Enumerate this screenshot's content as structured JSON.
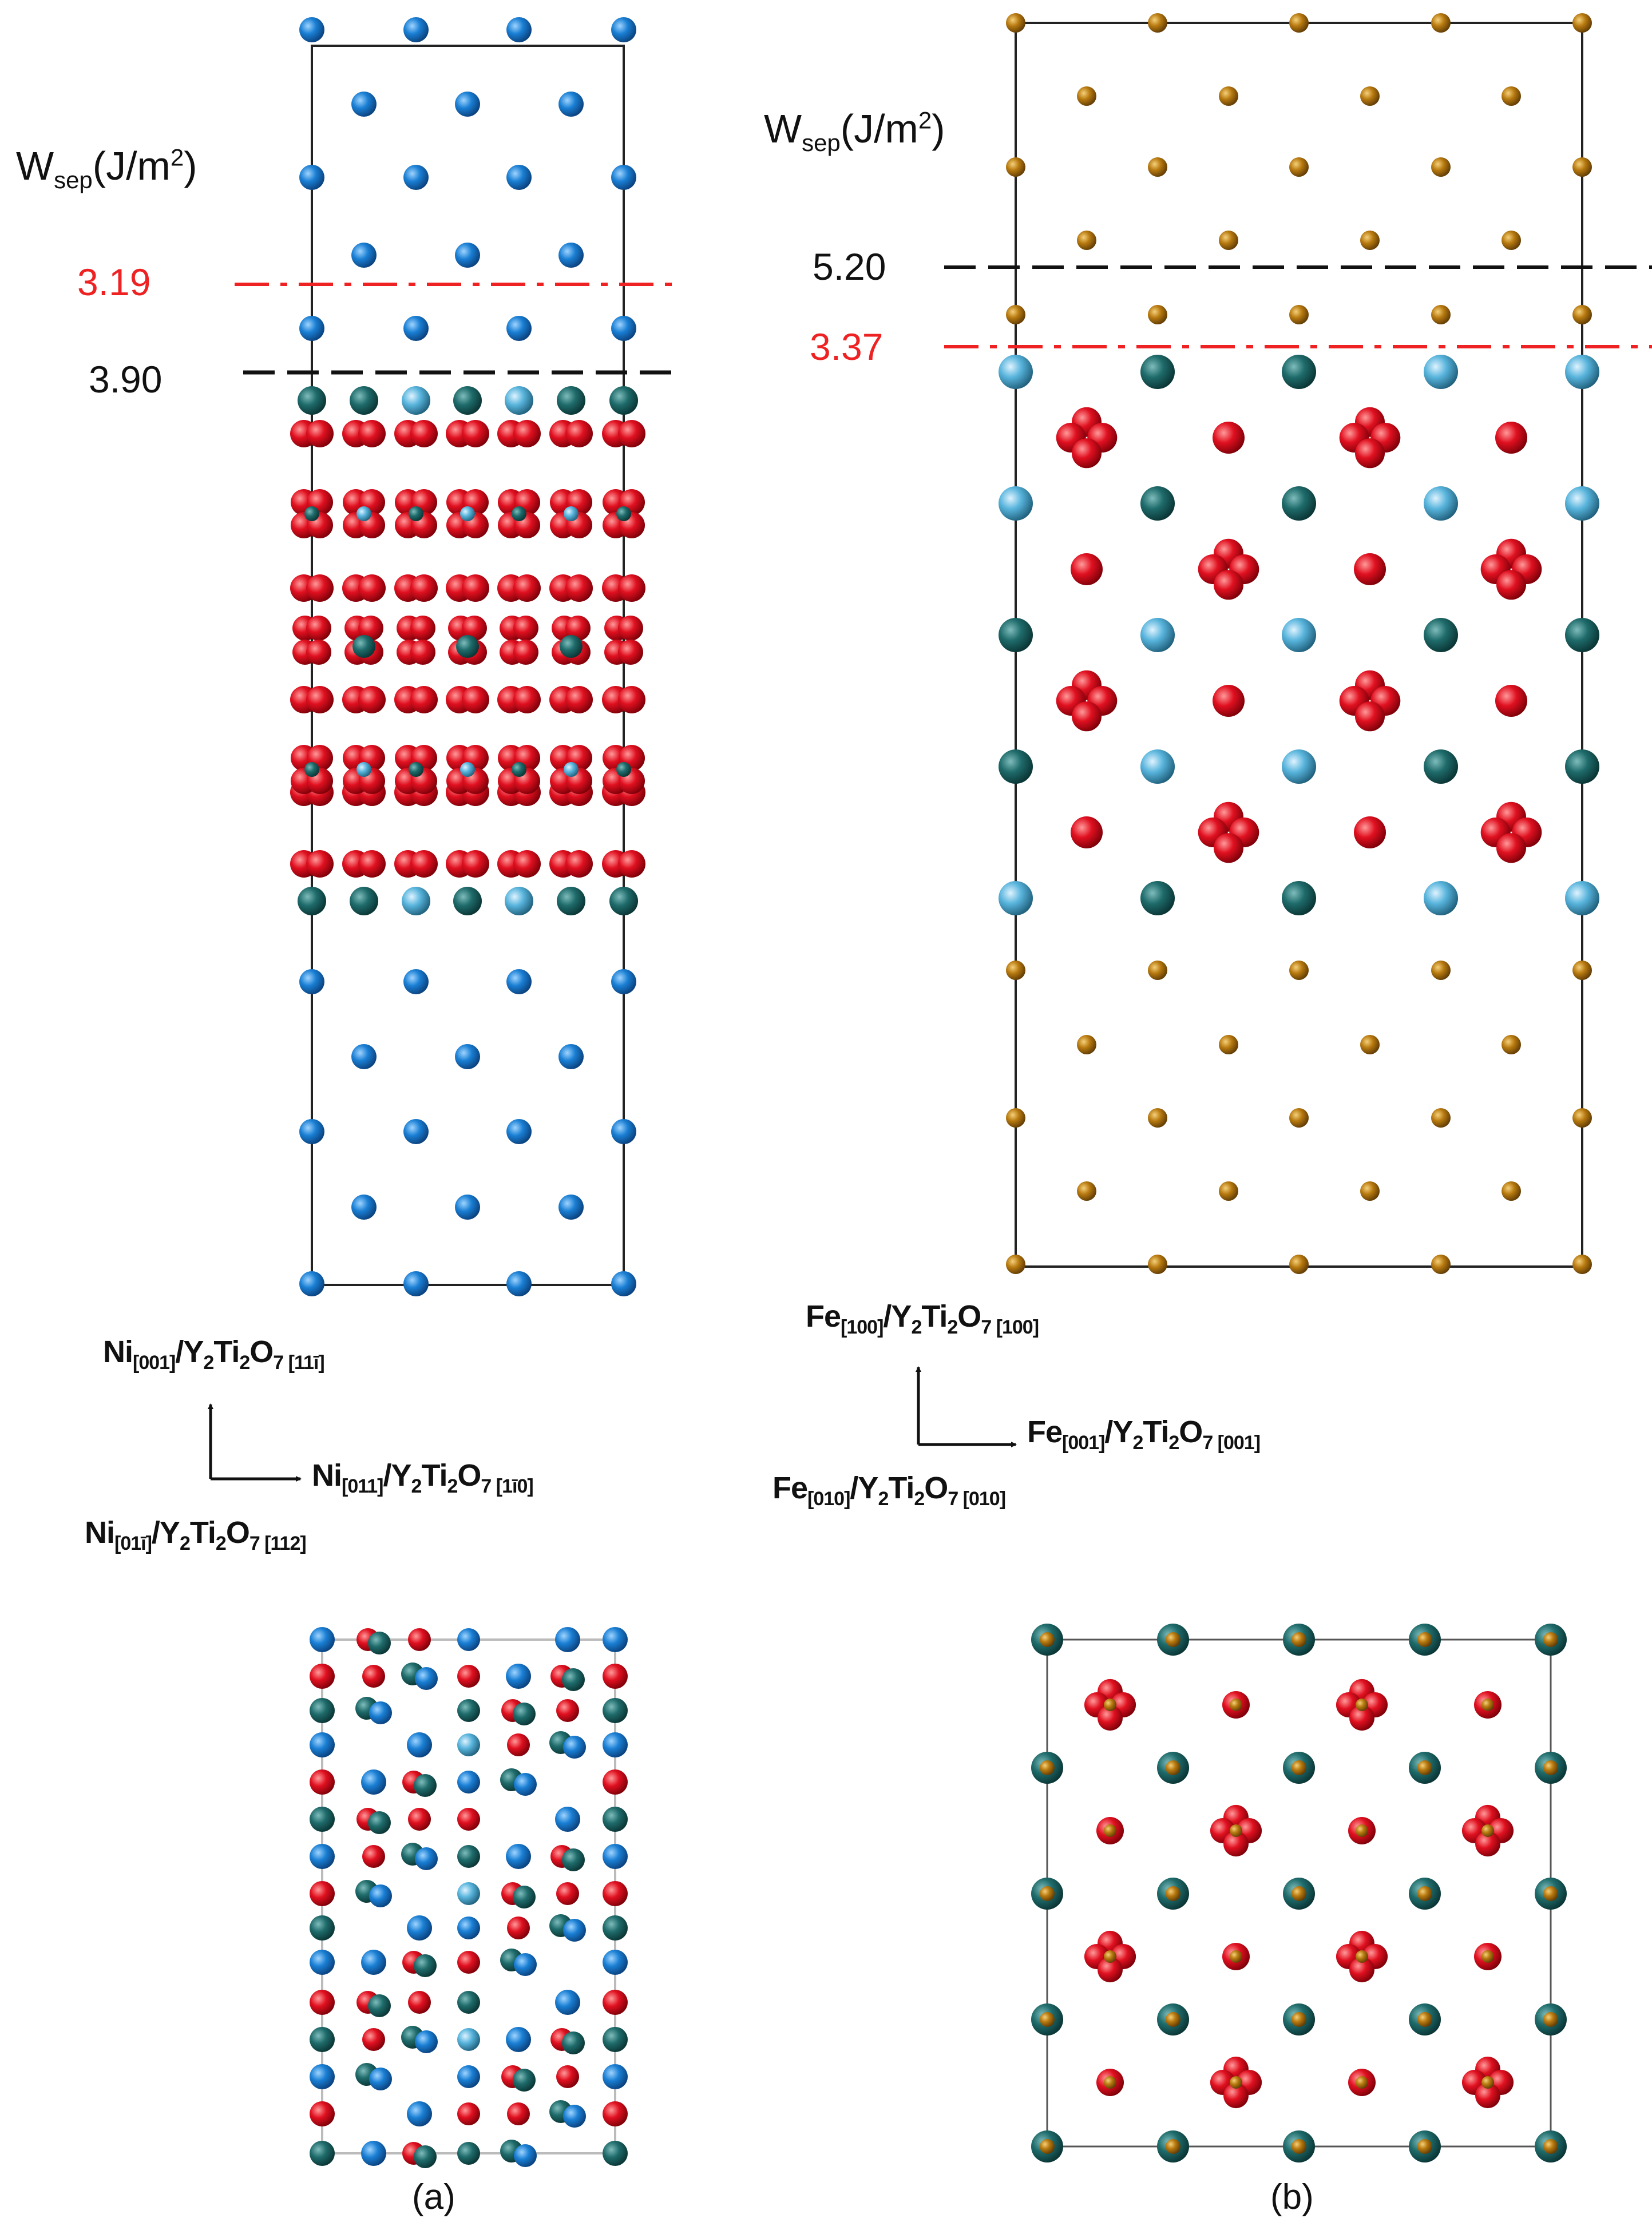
{
  "panel_a": {
    "wsep_symbol": "W",
    "wsep_subscript": "sep",
    "wsep_unit": "(J/m",
    "wsep_unit_sup": "2",
    "wsep_unit_close": ")",
    "value_red": "3.19",
    "value_black": "3.90",
    "orientation_up": [
      "Ni",
      "[001]",
      "/Y",
      "2",
      "Ti",
      "2",
      "O",
      "7 [11ī]"
    ],
    "orientation_right": [
      "Ni",
      "[011]",
      "/Y",
      "2",
      "Ti",
      "2",
      "O",
      "7 [1ī0]"
    ],
    "orientation_out": [
      "Ni",
      "[01ī]",
      "/Y",
      "2",
      "Ti",
      "2",
      "O",
      "7 [112]"
    ],
    "panel_label": "(a)"
  },
  "panel_b": {
    "wsep_symbol": "W",
    "wsep_subscript": "sep",
    "wsep_unit": "(J/m",
    "wsep_unit_sup": "2",
    "wsep_unit_close": ")",
    "value_black": "5.20",
    "value_red": "3.37",
    "orientation_up": [
      "Fe",
      "[100]",
      "/Y",
      "2",
      "Ti",
      "2",
      "O",
      "7 [100]"
    ],
    "orientation_right": [
      "Fe",
      "[001]",
      "/Y",
      "2",
      "Ti",
      "2",
      "O",
      "7 [001]"
    ],
    "orientation_out": [
      "Fe",
      "[010]",
      "/Y",
      "2",
      "Ti",
      "2",
      "O",
      "7 [010]"
    ],
    "panel_label": "(b)"
  },
  "colors": {
    "ni_atom": "#1a7fd4",
    "fe_atom": "#b87a10",
    "o_atom": "#e01020",
    "y_atom": "#1f6b6b",
    "ti_atom": "#58b4dc",
    "red_line": "#ee2222",
    "black_line": "#111111",
    "cell_edge": "#222222"
  }
}
